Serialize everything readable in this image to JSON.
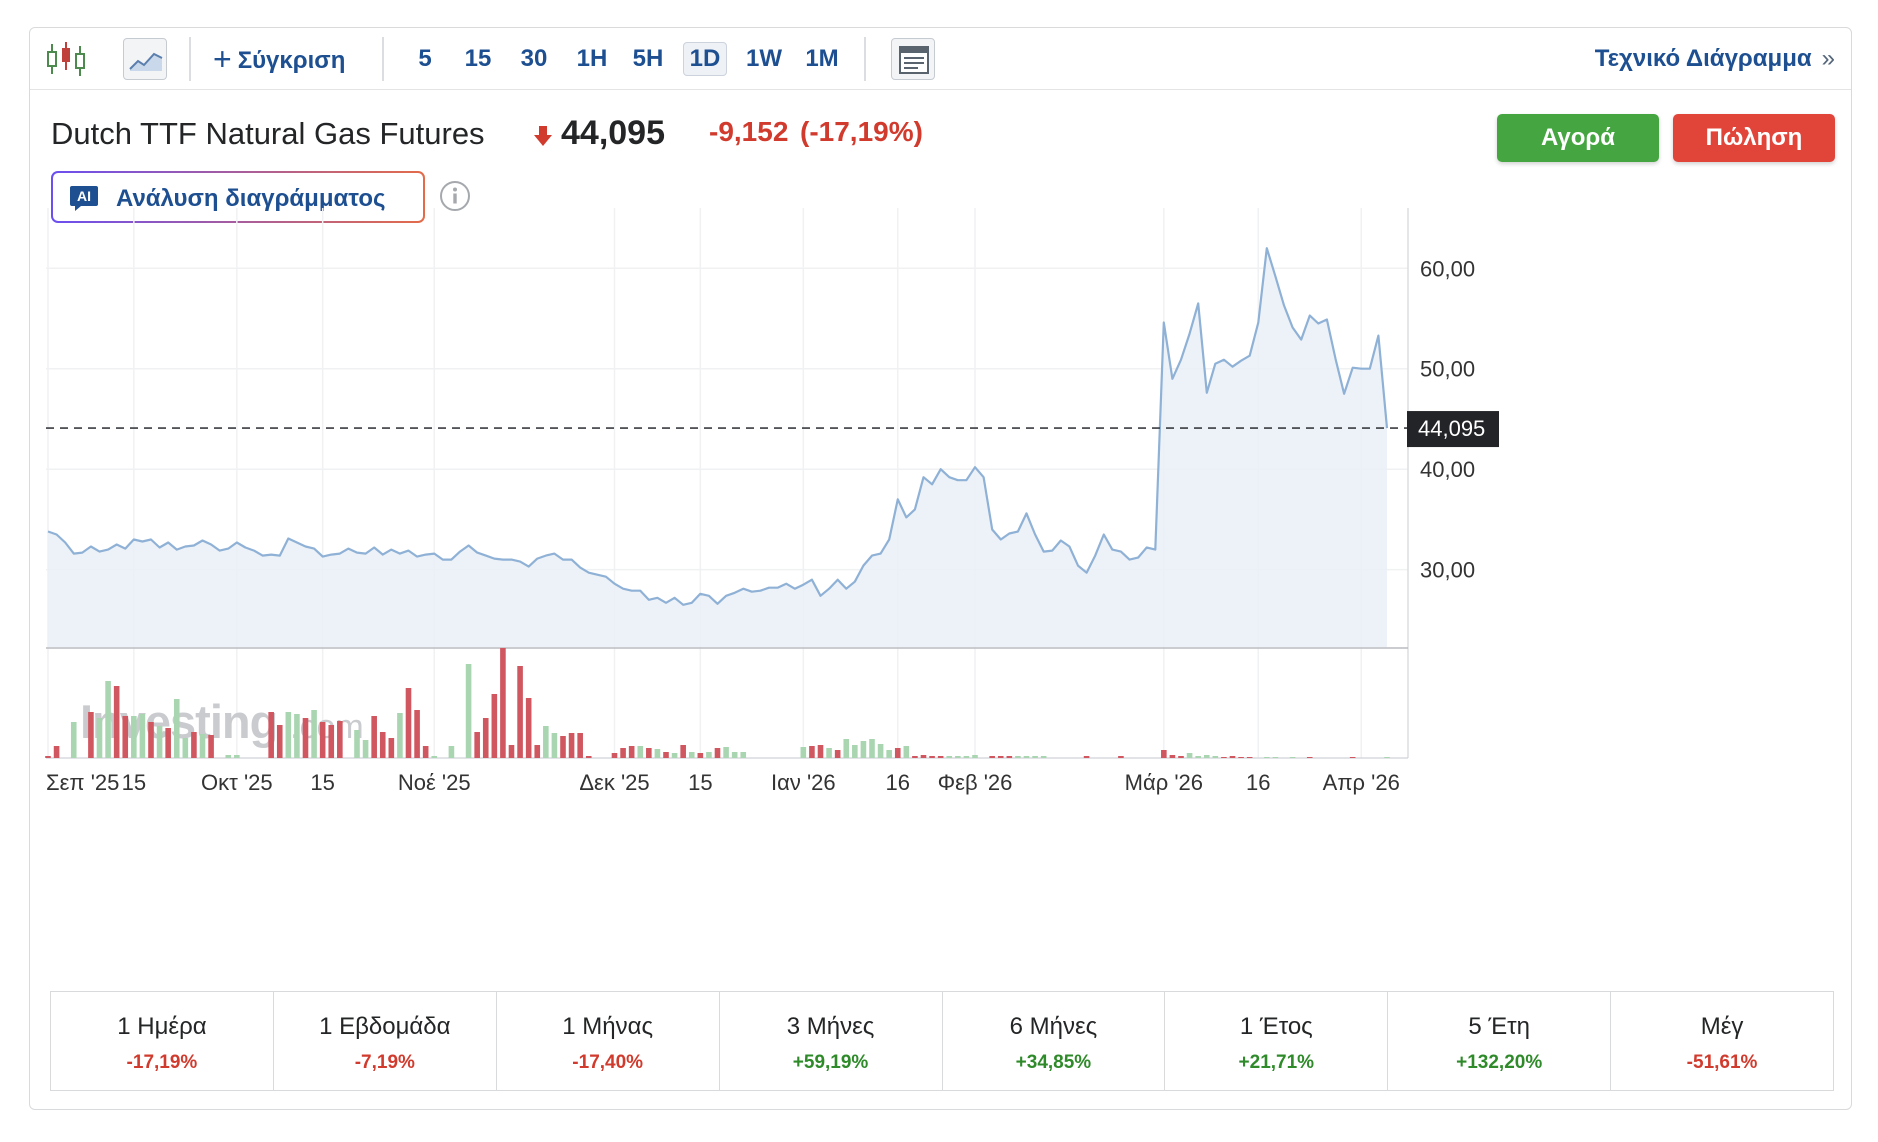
{
  "toolbar": {
    "compare_label": "Σύγκριση",
    "intervals": [
      "5",
      "15",
      "30",
      "1H",
      "5H",
      "1D",
      "1W",
      "1M"
    ],
    "selected_interval": "1D",
    "tech_link_label": "Τεχνικό Διάγραμμα",
    "tech_link_chevron": "»"
  },
  "header": {
    "instrument": "Dutch TTF Natural Gas Futures",
    "last": "44,095",
    "change": "-9,152",
    "change_pct": "(-17,19%)",
    "buy_label": "Αγορά",
    "sell_label": "Πώληση",
    "ai_badge": "AI",
    "ai_label": "Ανάλυση διαγράμματος"
  },
  "watermark": {
    "brand": "Investing",
    "suffix": ".com"
  },
  "colors": {
    "line": "#8fb1d6",
    "fill": "#eaf0f7",
    "volume_up": "#a9d6b1",
    "volume_down": "#d0575f",
    "down": "#d13b2e",
    "up": "#2f8a2a",
    "buy": "#45a540",
    "sell": "#e1453a",
    "link": "#1d4f91"
  },
  "chart_data": {
    "type": "area",
    "y_ticks": [
      "60,00",
      "50,00",
      "40,00",
      "30,00"
    ],
    "y_tick_values": [
      60,
      50,
      40,
      30
    ],
    "ylim": [
      22.3,
      66
    ],
    "x_labels": [
      "Σεπ '25",
      "15",
      "Οκτ '25",
      "15",
      "Νοέ '25",
      "Δεκ '25",
      "15",
      "Ιαν '26",
      "16",
      "Φεβ '26",
      "Μάρ '26",
      "16",
      "Απρ '26"
    ],
    "x_label_index": [
      0,
      10,
      22,
      32,
      45,
      66,
      76,
      88,
      99,
      108,
      130,
      141,
      153
    ],
    "last_value_label": "44,095",
    "last_value": 44.095,
    "grid": true,
    "series": [
      {
        "values": [
          33.8,
          33.5,
          32.7,
          31.6,
          31.7,
          32.3,
          31.8,
          32.0,
          32.5,
          32.1,
          33.0,
          32.8,
          33.0,
          32.2,
          32.7,
          32.0,
          32.3,
          32.4,
          32.9,
          32.5,
          31.9,
          32.1,
          32.7,
          32.2,
          31.9,
          31.4,
          31.5,
          31.4,
          33.1,
          32.7,
          32.3,
          32.1,
          31.3,
          31.5,
          31.6,
          32.1,
          31.7,
          31.6,
          32.2,
          31.5,
          32.0,
          31.6,
          31.9,
          31.3,
          31.5,
          31.6,
          31.0,
          31.0,
          31.8,
          32.4,
          31.7,
          31.4,
          31.1,
          31.0,
          31.0,
          30.8,
          30.3,
          31.1,
          31.4,
          31.6,
          31.0,
          31.0,
          30.2,
          29.7,
          29.5,
          29.3,
          28.6,
          28.1,
          27.9,
          27.9,
          27.0,
          27.2,
          26.7,
          27.2,
          26.5,
          26.7,
          27.6,
          27.4,
          26.6,
          27.4,
          27.7,
          28.1,
          27.8,
          27.9,
          28.2,
          28.2,
          28.6,
          28.1,
          28.5,
          29.0,
          27.4,
          28.1,
          29.0,
          28.1,
          28.8,
          30.4,
          31.4,
          31.6,
          33.0,
          37.0,
          35.2,
          36.0,
          39.2,
          38.5,
          40.0,
          39.2,
          38.9,
          38.9,
          40.2,
          39.2,
          34.0,
          33.0,
          33.6,
          33.8,
          35.6,
          33.5,
          31.8,
          31.9,
          32.9,
          32.3,
          30.4,
          29.7,
          31.4,
          33.5,
          32.0,
          31.8,
          31.0,
          31.2,
          32.2,
          32.0,
          54.6,
          49.0,
          50.9,
          53.5,
          56.5,
          47.6,
          50.5,
          50.9,
          50.2,
          50.8,
          51.3,
          54.6,
          62.0,
          59.2,
          56.3,
          54.1,
          52.9,
          55.3,
          54.5,
          54.9,
          51.0,
          47.5,
          50.1,
          50.0,
          50.0,
          53.3,
          44.095
        ]
      }
    ],
    "volume": [
      {
        "h": 2,
        "up": false
      },
      {
        "h": 12,
        "up": false
      },
      {
        "h": 0,
        "up": true
      },
      {
        "h": 36,
        "up": true
      },
      {
        "h": 0,
        "up": true
      },
      {
        "h": 46,
        "up": false
      },
      {
        "h": 40,
        "up": true
      },
      {
        "h": 77,
        "up": true
      },
      {
        "h": 72,
        "up": false
      },
      {
        "h": 42,
        "up": false
      },
      {
        "h": 42,
        "up": true
      },
      {
        "h": 44,
        "up": true
      },
      {
        "h": 36,
        "up": false
      },
      {
        "h": 32,
        "up": true
      },
      {
        "h": 30,
        "up": false
      },
      {
        "h": 59,
        "up": true
      },
      {
        "h": 20,
        "up": true
      },
      {
        "h": 26,
        "up": false
      },
      {
        "h": 24,
        "up": true
      },
      {
        "h": 23,
        "up": false
      },
      {
        "h": 0,
        "up": true
      },
      {
        "h": 3,
        "up": true
      },
      {
        "h": 3,
        "up": true
      },
      {
        "h": 0,
        "up": true
      },
      {
        "h": 0,
        "up": true
      },
      {
        "h": 0,
        "up": true
      },
      {
        "h": 46,
        "up": false
      },
      {
        "h": 33,
        "up": false
      },
      {
        "h": 46,
        "up": true
      },
      {
        "h": 44,
        "up": true
      },
      {
        "h": 40,
        "up": false
      },
      {
        "h": 48,
        "up": true
      },
      {
        "h": 36,
        "up": false
      },
      {
        "h": 33,
        "up": false
      },
      {
        "h": 37,
        "up": false
      },
      {
        "h": 0,
        "up": true
      },
      {
        "h": 28,
        "up": true
      },
      {
        "h": 18,
        "up": true
      },
      {
        "h": 42,
        "up": false
      },
      {
        "h": 26,
        "up": false
      },
      {
        "h": 20,
        "up": false
      },
      {
        "h": 45,
        "up": true
      },
      {
        "h": 70,
        "up": false
      },
      {
        "h": 48,
        "up": false
      },
      {
        "h": 12,
        "up": false
      },
      {
        "h": 2,
        "up": true
      },
      {
        "h": 0,
        "up": true
      },
      {
        "h": 12,
        "up": true
      },
      {
        "h": 0,
        "up": true
      },
      {
        "h": 94,
        "up": true
      },
      {
        "h": 26,
        "up": false
      },
      {
        "h": 40,
        "up": false
      },
      {
        "h": 64,
        "up": false
      },
      {
        "h": 110,
        "up": false
      },
      {
        "h": 13,
        "up": false
      },
      {
        "h": 92,
        "up": false
      },
      {
        "h": 60,
        "up": false
      },
      {
        "h": 13,
        "up": false
      },
      {
        "h": 32,
        "up": true
      },
      {
        "h": 25,
        "up": true
      },
      {
        "h": 22,
        "up": false
      },
      {
        "h": 25,
        "up": false
      },
      {
        "h": 25,
        "up": false
      },
      {
        "h": 2,
        "up": false
      },
      {
        "h": 0,
        "up": true
      },
      {
        "h": 0,
        "up": true
      },
      {
        "h": 5,
        "up": false
      },
      {
        "h": 10,
        "up": false
      },
      {
        "h": 12,
        "up": false
      },
      {
        "h": 12,
        "up": true
      },
      {
        "h": 10,
        "up": false
      },
      {
        "h": 9,
        "up": true
      },
      {
        "h": 6,
        "up": false
      },
      {
        "h": 5,
        "up": true
      },
      {
        "h": 13,
        "up": false
      },
      {
        "h": 6,
        "up": true
      },
      {
        "h": 5,
        "up": false
      },
      {
        "h": 6,
        "up": true
      },
      {
        "h": 10,
        "up": false
      },
      {
        "h": 11,
        "up": true
      },
      {
        "h": 6,
        "up": true
      },
      {
        "h": 6,
        "up": true
      },
      {
        "h": 0,
        "up": true
      },
      {
        "h": 0,
        "up": true
      },
      {
        "h": 0,
        "up": true
      },
      {
        "h": 0,
        "up": true
      },
      {
        "h": 0,
        "up": true
      },
      {
        "h": 0,
        "up": true
      },
      {
        "h": 11,
        "up": true
      },
      {
        "h": 12,
        "up": false
      },
      {
        "h": 13,
        "up": false
      },
      {
        "h": 10,
        "up": true
      },
      {
        "h": 8,
        "up": false
      },
      {
        "h": 19,
        "up": true
      },
      {
        "h": 13,
        "up": true
      },
      {
        "h": 17,
        "up": true
      },
      {
        "h": 19,
        "up": true
      },
      {
        "h": 14,
        "up": true
      },
      {
        "h": 8,
        "up": true
      },
      {
        "h": 10,
        "up": false
      },
      {
        "h": 12,
        "up": true
      },
      {
        "h": 2,
        "up": false
      },
      {
        "h": 3,
        "up": false
      },
      {
        "h": 2,
        "up": false
      },
      {
        "h": 2,
        "up": false
      },
      {
        "h": 2,
        "up": true
      },
      {
        "h": 2,
        "up": true
      },
      {
        "h": 2,
        "up": true
      },
      {
        "h": 3,
        "up": true
      },
      {
        "h": 0,
        "up": true
      },
      {
        "h": 2,
        "up": false
      },
      {
        "h": 2,
        "up": false
      },
      {
        "h": 2,
        "up": false
      },
      {
        "h": 2,
        "up": true
      },
      {
        "h": 2,
        "up": true
      },
      {
        "h": 2,
        "up": true
      },
      {
        "h": 2,
        "up": true
      },
      {
        "h": 0,
        "up": true
      },
      {
        "h": 0,
        "up": true
      },
      {
        "h": 0,
        "up": true
      },
      {
        "h": 0,
        "up": true
      },
      {
        "h": 2,
        "up": false
      },
      {
        "h": 0,
        "up": true
      },
      {
        "h": 0,
        "up": true
      },
      {
        "h": 0,
        "up": true
      },
      {
        "h": 2,
        "up": false
      },
      {
        "h": 0,
        "up": true
      },
      {
        "h": 0,
        "up": true
      },
      {
        "h": 0,
        "up": true
      },
      {
        "h": 0,
        "up": true
      },
      {
        "h": 8,
        "up": false
      },
      {
        "h": 3,
        "up": false
      },
      {
        "h": 2,
        "up": false
      },
      {
        "h": 5,
        "up": true
      },
      {
        "h": 2,
        "up": true
      },
      {
        "h": 3,
        "up": true
      },
      {
        "h": 2,
        "up": true
      },
      {
        "h": 1,
        "up": false
      },
      {
        "h": 2,
        "up": false
      },
      {
        "h": 1,
        "up": false
      },
      {
        "h": 1,
        "up": false
      },
      {
        "h": 0,
        "up": true
      },
      {
        "h": 1,
        "up": true
      },
      {
        "h": 1,
        "up": true
      },
      {
        "h": 0,
        "up": true
      },
      {
        "h": 1,
        "up": true
      },
      {
        "h": 0,
        "up": true
      },
      {
        "h": 1,
        "up": false
      },
      {
        "h": 0,
        "up": true
      },
      {
        "h": 0,
        "up": true
      },
      {
        "h": 0,
        "up": true
      },
      {
        "h": 0,
        "up": true
      },
      {
        "h": 1,
        "up": false
      },
      {
        "h": 0,
        "up": true
      },
      {
        "h": 0,
        "up": true
      },
      {
        "h": 0,
        "up": true
      },
      {
        "h": 1,
        "up": true
      }
    ]
  },
  "performance": [
    {
      "label": "1 Ημέρα",
      "value": "-17,19%",
      "dir": "neg"
    },
    {
      "label": "1 Εβδομάδα",
      "value": "-7,19%",
      "dir": "neg"
    },
    {
      "label": "1 Μήνας",
      "value": "-17,40%",
      "dir": "neg"
    },
    {
      "label": "3 Μήνες",
      "value": "+59,19%",
      "dir": "pos"
    },
    {
      "label": "6 Μήνες",
      "value": "+34,85%",
      "dir": "pos"
    },
    {
      "label": "1 Έτος",
      "value": "+21,71%",
      "dir": "pos"
    },
    {
      "label": "5 Έτη",
      "value": "+132,20%",
      "dir": "pos"
    },
    {
      "label": "Μέγ",
      "value": "-51,61%",
      "dir": "neg"
    }
  ]
}
